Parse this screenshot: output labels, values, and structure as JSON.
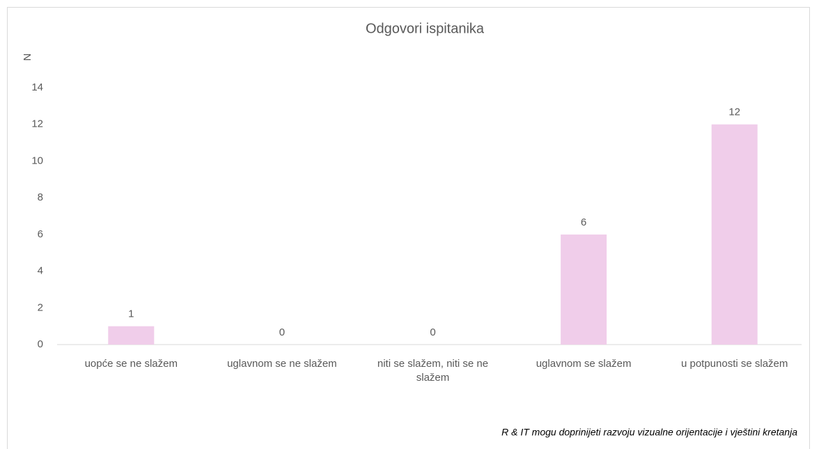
{
  "chart_data": {
    "type": "bar",
    "title": "Odgovori ispitanika",
    "y_label": "N",
    "x_label": "R & IT mogu doprinijeti razvoju vizualne orijentacije i vještini kretanja",
    "categories": [
      "uopće se ne slažem",
      "uglavnom se ne slažem",
      "niti se slažem, niti se ne slažem",
      "uglavnom se slažem",
      "u potpunosti se slažem"
    ],
    "values": [
      1,
      0,
      0,
      6,
      12
    ],
    "color": "#f0cdea",
    "ylim": [
      0,
      14
    ],
    "yticks": [
      0,
      2,
      4,
      6,
      8,
      10,
      12,
      14
    ],
    "grid": false
  }
}
